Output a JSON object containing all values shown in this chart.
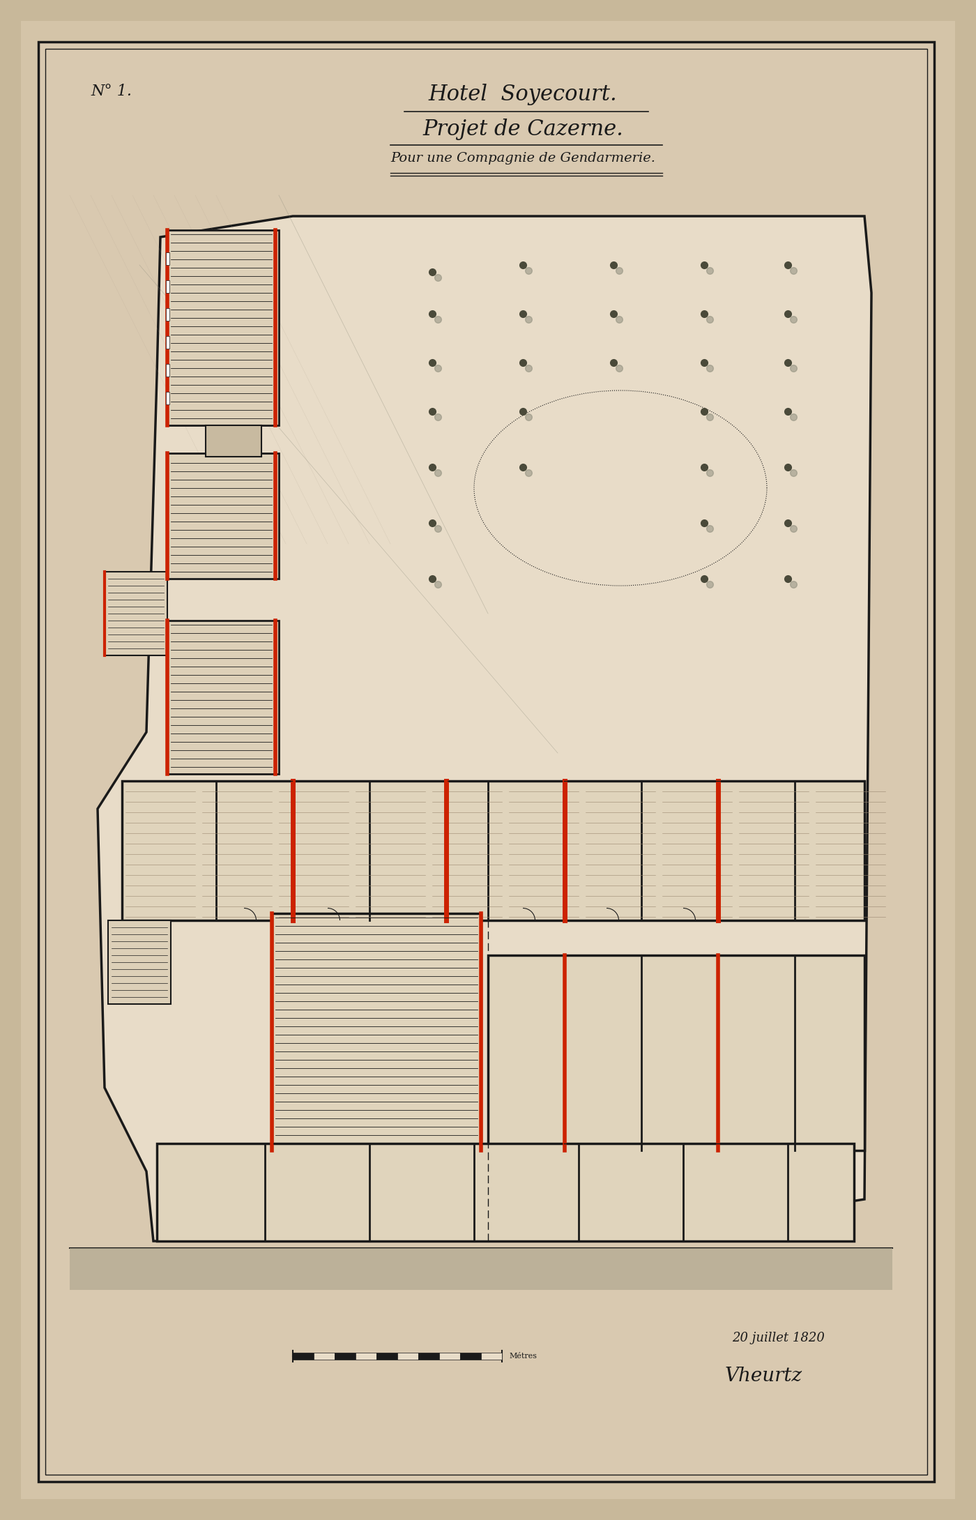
{
  "bg_color": "#c8b89a",
  "paper_color": "#d9c9b0",
  "inner_bg": "#e8dcc8",
  "wall_color": "#1a1a1a",
  "red_color": "#cc2200",
  "line_color": "#2a2a2a",
  "title_line1": "Hotel  Soyecourt.",
  "title_line2": "Projet de Cazerne.",
  "title_line3": "Pour une Compagnie de Gendarmerie.",
  "label_top_left": "N° 1.",
  "date_text": "20 juillet 1820",
  "signature": "Vheurtz",
  "outer_margin_color": "#d4c4a8",
  "courtyard_dot_color": "#3a3a3a"
}
